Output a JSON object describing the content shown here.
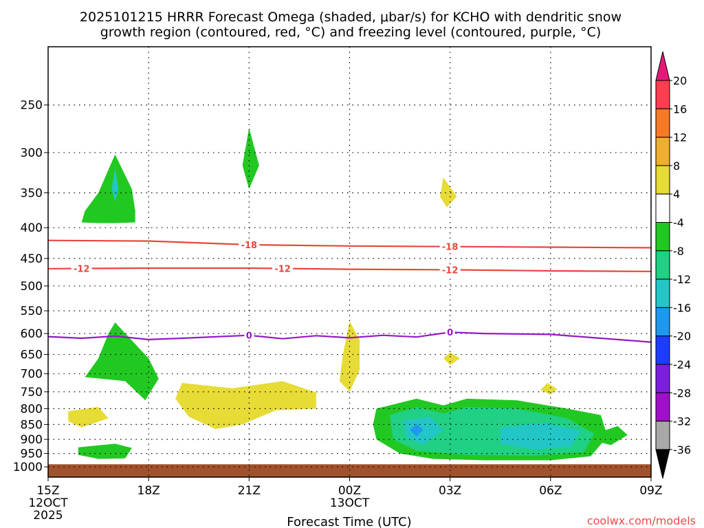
{
  "chart_data": {
    "type": "contour",
    "title_line1": "2025101215 HRRR Forecast Omega (shaded, μbar/s) for KCHO with dendritic snow",
    "title_line2": "growth region (contoured, red, °C) and freezing level (contoured, purple, °C)",
    "xlabel": "Forecast Time (UTC)",
    "ylabel": "",
    "watermark": "coolwx.com/models",
    "x_range_hours": [
      0,
      18
    ],
    "x_ticks": [
      {
        "h": 0,
        "label": "15Z",
        "sub": [
          "12OCT",
          "2025"
        ]
      },
      {
        "h": 3,
        "label": "18Z",
        "sub": []
      },
      {
        "h": 6,
        "label": "21Z",
        "sub": []
      },
      {
        "h": 9,
        "label": "00Z",
        "sub": [
          "13OCT"
        ]
      },
      {
        "h": 12,
        "label": "03Z",
        "sub": []
      },
      {
        "h": 15,
        "label": "06Z",
        "sub": []
      },
      {
        "h": 18,
        "label": "09Z",
        "sub": []
      }
    ],
    "y_range_mb": [
      1040,
      200
    ],
    "y_ticks": [
      "250",
      "300",
      "350",
      "400",
      "450",
      "500",
      "550",
      "600",
      "650",
      "700",
      "750",
      "800",
      "850",
      "900",
      "950",
      "1000"
    ],
    "colorbar": {
      "labels": [
        "20",
        "16",
        "12",
        "8",
        "4",
        "-4",
        "-8",
        "-12",
        "-16",
        "-20",
        "-24",
        "-28",
        "-32",
        "-36"
      ],
      "colors": [
        "#ff3c50",
        "#f57a26",
        "#eeae30",
        "#e7db36",
        "#ffffff",
        "#22c822",
        "#20d084",
        "#23c6c6",
        "#1e98ee",
        "#1e3cff",
        "#7c1ee0",
        "#a010c8",
        "#a8a8a8"
      ],
      "top_arrow": "#e6197a",
      "bottom_arrow": "#000000"
    },
    "contours": [
      {
        "name": "dendritic-18",
        "label": "-18",
        "color": "#e8453c",
        "label_at_h": [
          6,
          12
        ],
        "points": [
          [
            0,
            420
          ],
          [
            3,
            421
          ],
          [
            6,
            427
          ],
          [
            9,
            429
          ],
          [
            12,
            430
          ],
          [
            15,
            431
          ],
          [
            18,
            432
          ]
        ]
      },
      {
        "name": "dendritic-12",
        "label": "-12",
        "color": "#e8453c",
        "label_at_h": [
          1,
          7,
          12
        ],
        "points": [
          [
            0,
            468
          ],
          [
            3,
            467
          ],
          [
            6,
            467
          ],
          [
            9,
            469
          ],
          [
            12,
            470
          ],
          [
            15,
            472
          ],
          [
            18,
            473
          ]
        ]
      },
      {
        "name": "freezing-0",
        "label": "0",
        "color": "#9418c8",
        "label_at_h": [
          6,
          12
        ],
        "points": [
          [
            0,
            607
          ],
          [
            1,
            611
          ],
          [
            2,
            606
          ],
          [
            3,
            614
          ],
          [
            4,
            611
          ],
          [
            6,
            604
          ],
          [
            7,
            612
          ],
          [
            8,
            605
          ],
          [
            9,
            610
          ],
          [
            10,
            604
          ],
          [
            11,
            608
          ],
          [
            12,
            597
          ],
          [
            13,
            600
          ],
          [
            15,
            602
          ],
          [
            18,
            620
          ]
        ]
      }
    ],
    "omega_regions": [
      {
        "name": "omega-green-upper-left",
        "value": -4,
        "color": "#22c822",
        "points": [
          [
            1.0,
            392
          ],
          [
            1.1,
            375
          ],
          [
            1.5,
            350
          ],
          [
            2.0,
            302
          ],
          [
            2.5,
            345
          ],
          [
            2.6,
            375
          ],
          [
            2.6,
            392
          ],
          [
            2.0,
            393
          ],
          [
            1.5,
            393
          ]
        ]
      },
      {
        "name": "omega-blue-upper-left",
        "value": -12,
        "color": "#23c6c6",
        "points": [
          [
            2.0,
            318
          ],
          [
            2.1,
            345
          ],
          [
            2.0,
            362
          ],
          [
            1.9,
            345
          ]
        ]
      },
      {
        "name": "omega-green-21z",
        "value": -4,
        "color": "#22c822",
        "points": [
          [
            6.0,
            273
          ],
          [
            6.3,
            315
          ],
          [
            6.0,
            345
          ],
          [
            5.8,
            315
          ]
        ]
      },
      {
        "name": "omega-yellow-02z-upper",
        "value": 4,
        "color": "#e7db36",
        "points": [
          [
            11.8,
            330
          ],
          [
            12.2,
            355
          ],
          [
            11.9,
            370
          ],
          [
            11.7,
            355
          ]
        ]
      },
      {
        "name": "omega-green-mid-left",
        "value": -4,
        "color": "#22c822",
        "points": [
          [
            2.0,
            575
          ],
          [
            3.0,
            660
          ],
          [
            3.3,
            713
          ],
          [
            2.9,
            775
          ],
          [
            2.3,
            720
          ],
          [
            1.1,
            709
          ],
          [
            1.5,
            660
          ],
          [
            1.8,
            600
          ]
        ]
      },
      {
        "name": "omega-yellow-00z",
        "value": 4,
        "color": "#e7db36",
        "points": [
          [
            9.0,
            572
          ],
          [
            9.3,
            615
          ],
          [
            9.3,
            690
          ],
          [
            9.0,
            750
          ],
          [
            8.7,
            720
          ],
          [
            8.8,
            650
          ]
        ]
      },
      {
        "name": "omega-yellow-03z-small",
        "value": 4,
        "color": "#e7db36",
        "points": [
          [
            12.0,
            645
          ],
          [
            12.3,
            660
          ],
          [
            12.0,
            677
          ],
          [
            11.8,
            660
          ]
        ]
      },
      {
        "name": "omega-yellow-06z-small",
        "value": 4,
        "color": "#e7db36",
        "points": [
          [
            14.9,
            725
          ],
          [
            15.2,
            742
          ],
          [
            15.0,
            758
          ],
          [
            14.7,
            745
          ]
        ]
      },
      {
        "name": "omega-yellow-big",
        "value": 4,
        "color": "#e7db36",
        "points": [
          [
            4.0,
            725
          ],
          [
            5.5,
            740
          ],
          [
            7.0,
            720
          ],
          [
            8.0,
            752
          ],
          [
            8.0,
            800
          ],
          [
            6.8,
            805
          ],
          [
            5.8,
            850
          ],
          [
            5.0,
            865
          ],
          [
            4.2,
            825
          ],
          [
            3.8,
            770
          ]
        ]
      },
      {
        "name": "omega-yellow-left-small",
        "value": 4,
        "color": "#e7db36",
        "points": [
          [
            0.6,
            808
          ],
          [
            1.5,
            795
          ],
          [
            1.8,
            830
          ],
          [
            1.0,
            860
          ],
          [
            0.6,
            840
          ]
        ]
      },
      {
        "name": "omega-green-left-low",
        "value": -4,
        "color": "#22c822",
        "points": [
          [
            0.9,
            928
          ],
          [
            2.0,
            915
          ],
          [
            2.5,
            930
          ],
          [
            2.3,
            968
          ],
          [
            1.5,
            970
          ],
          [
            0.9,
            955
          ]
        ]
      },
      {
        "name": "omega-green-big-low",
        "value": -4,
        "color": "#22c822",
        "points": [
          [
            9.8,
            800
          ],
          [
            11.0,
            770
          ],
          [
            11.8,
            790
          ],
          [
            12.5,
            770
          ],
          [
            14.0,
            775
          ],
          [
            15.5,
            800
          ],
          [
            16.5,
            820
          ],
          [
            16.7,
            890
          ],
          [
            16.2,
            960
          ],
          [
            15.0,
            975
          ],
          [
            13.0,
            975
          ],
          [
            11.5,
            970
          ],
          [
            10.5,
            950
          ],
          [
            9.8,
            900
          ],
          [
            9.7,
            850
          ]
        ]
      },
      {
        "name": "omega-teal-big-low",
        "value": -8,
        "color": "#20d084",
        "points": [
          [
            10.2,
            820
          ],
          [
            11.0,
            795
          ],
          [
            11.8,
            815
          ],
          [
            12.5,
            795
          ],
          [
            14.0,
            800
          ],
          [
            15.5,
            830
          ],
          [
            16.3,
            880
          ],
          [
            16.0,
            945
          ],
          [
            14.5,
            958
          ],
          [
            12.5,
            955
          ],
          [
            11.0,
            940
          ],
          [
            10.3,
            900
          ]
        ]
      },
      {
        "name": "omega-cyan-left-low",
        "value": -12,
        "color": "#23c6c6",
        "points": [
          [
            10.6,
            838
          ],
          [
            11.4,
            825
          ],
          [
            11.8,
            870
          ],
          [
            11.2,
            918
          ],
          [
            10.7,
            895
          ]
        ]
      },
      {
        "name": "omega-blue-left-low",
        "value": -16,
        "color": "#1e98ee",
        "points": [
          [
            11.0,
            848
          ],
          [
            11.2,
            868
          ],
          [
            11.0,
            890
          ],
          [
            10.8,
            868
          ]
        ]
      },
      {
        "name": "omega-cyan-right-low",
        "value": -12,
        "color": "#23c6c6",
        "points": [
          [
            13.5,
            860
          ],
          [
            14.8,
            845
          ],
          [
            15.9,
            870
          ],
          [
            15.6,
            925
          ],
          [
            14.5,
            935
          ],
          [
            13.5,
            915
          ]
        ]
      },
      {
        "name": "omega-green-right-small",
        "value": -4,
        "color": "#22c822",
        "points": [
          [
            16.3,
            882
          ],
          [
            17.0,
            855
          ],
          [
            17.3,
            885
          ],
          [
            16.8,
            920
          ],
          [
            16.3,
            905
          ]
        ]
      }
    ],
    "terrain": {
      "name": "surface-ground",
      "color": "#a0522d",
      "from_mb": 990
    }
  }
}
